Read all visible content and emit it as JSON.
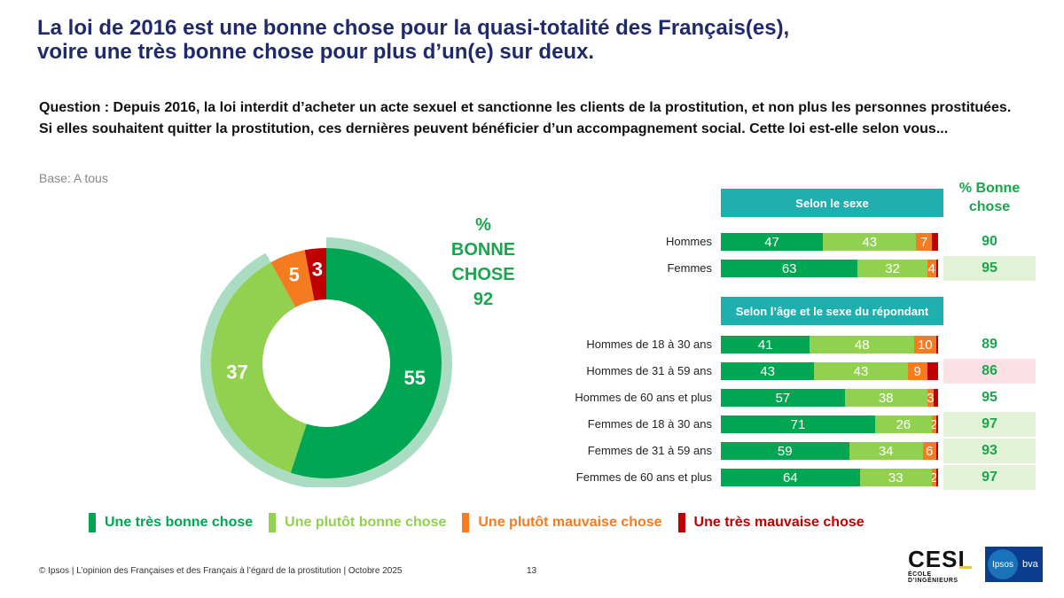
{
  "title": {
    "line1": "La loi de 2016 est une bonne chose pour la quasi-totalité des Français(es),",
    "line2": "voire une très bonne chose pour plus d’un(e) sur deux."
  },
  "question": "Question : Depuis 2016, la loi interdit d’acheter un acte sexuel et sanctionne les clients de la prostitution, et non plus les personnes prostituées. Si elles souhaitent quitter la prostitution, ces dernières peuvent bénéficier d’un accompagnement social. Cette loi est-elle selon vous...",
  "base": "Base: A tous",
  "colors": {
    "tres_bonne": "#00a651",
    "plutot_bonne": "#92d050",
    "plutot_mauvaise": "#f47b20",
    "tres_mauvaise": "#c00000",
    "ring": "#a9dcc2",
    "header": "#1eafae",
    "good_bg": "#e2f2d6",
    "bad_bg": "#fbe0e6",
    "accent_green": "#1aa54e"
  },
  "chart_data": [
    {
      "type": "pie",
      "style": "donut",
      "categories": [
        "Une très bonne chose",
        "Une plutôt bonne chose",
        "Une plutôt mauvaise chose",
        "Une très mauvaise chose"
      ],
      "values": [
        55,
        37,
        5,
        3
      ],
      "total_label": {
        "line1": "%",
        "line2": "BONNE",
        "line3": "CHOSE",
        "value": "92"
      }
    },
    {
      "type": "bar",
      "orientation": "horizontal",
      "stacked": true,
      "value_column_header": {
        "line1": "% Bonne",
        "line2": "chose"
      },
      "groups": [
        {
          "header": "Selon le sexe",
          "rows": [
            {
              "label": "Hommes",
              "values": [
                47,
                43,
                7,
                3
              ],
              "total": "90",
              "total_bg": "none"
            },
            {
              "label": "Femmes",
              "values": [
                63,
                32,
                4,
                1
              ],
              "total": "95",
              "total_bg": "good"
            }
          ]
        },
        {
          "header": "Selon l’âge et le sexe du répondant",
          "rows": [
            {
              "label": "Hommes de 18 à 30 ans",
              "values": [
                41,
                48,
                10,
                1
              ],
              "total": "89",
              "total_bg": "none"
            },
            {
              "label": "Hommes de 31 à 59 ans",
              "values": [
                43,
                43,
                9,
                5
              ],
              "total": "86",
              "total_bg": "bad"
            },
            {
              "label": "Hommes de 60 ans et plus",
              "values": [
                57,
                38,
                3,
                2
              ],
              "total": "95",
              "total_bg": "none"
            },
            {
              "label": "Femmes de 18 à 30 ans",
              "values": [
                71,
                26,
                2,
                1
              ],
              "total": "97",
              "total_bg": "good"
            },
            {
              "label": "Femmes de 31 à 59 ans",
              "values": [
                59,
                34,
                6,
                1
              ],
              "total": "93",
              "total_bg": "good"
            },
            {
              "label": "Femmes de 60 ans et plus",
              "values": [
                64,
                33,
                2,
                1
              ],
              "total": "97",
              "total_bg": "good"
            }
          ]
        }
      ],
      "series": [
        {
          "name": "Une très bonne chose"
        },
        {
          "name": "Une plutôt bonne chose"
        },
        {
          "name": "Une plutôt mauvaise chose"
        },
        {
          "name": "Une très mauvaise chose"
        }
      ]
    }
  ],
  "legend": [
    {
      "label": "Une très bonne chose",
      "color": "#00a651"
    },
    {
      "label": "Une plutôt bonne chose",
      "color": "#92d050"
    },
    {
      "label": "Une plutôt mauvaise chose",
      "color": "#f47b20"
    },
    {
      "label": "Une très mauvaise chose",
      "color": "#c00000"
    }
  ],
  "footer": "© Ipsos | L’opinion des Françaises et des Français à l’égard de la prostitution | Octobre 2025",
  "page_number": "13",
  "logos": {
    "cesi": "CESI",
    "cesi_sub": "ÉCOLE D’INGÉNIEURS",
    "ipsos": "Ipsos",
    "bva": "bva"
  }
}
